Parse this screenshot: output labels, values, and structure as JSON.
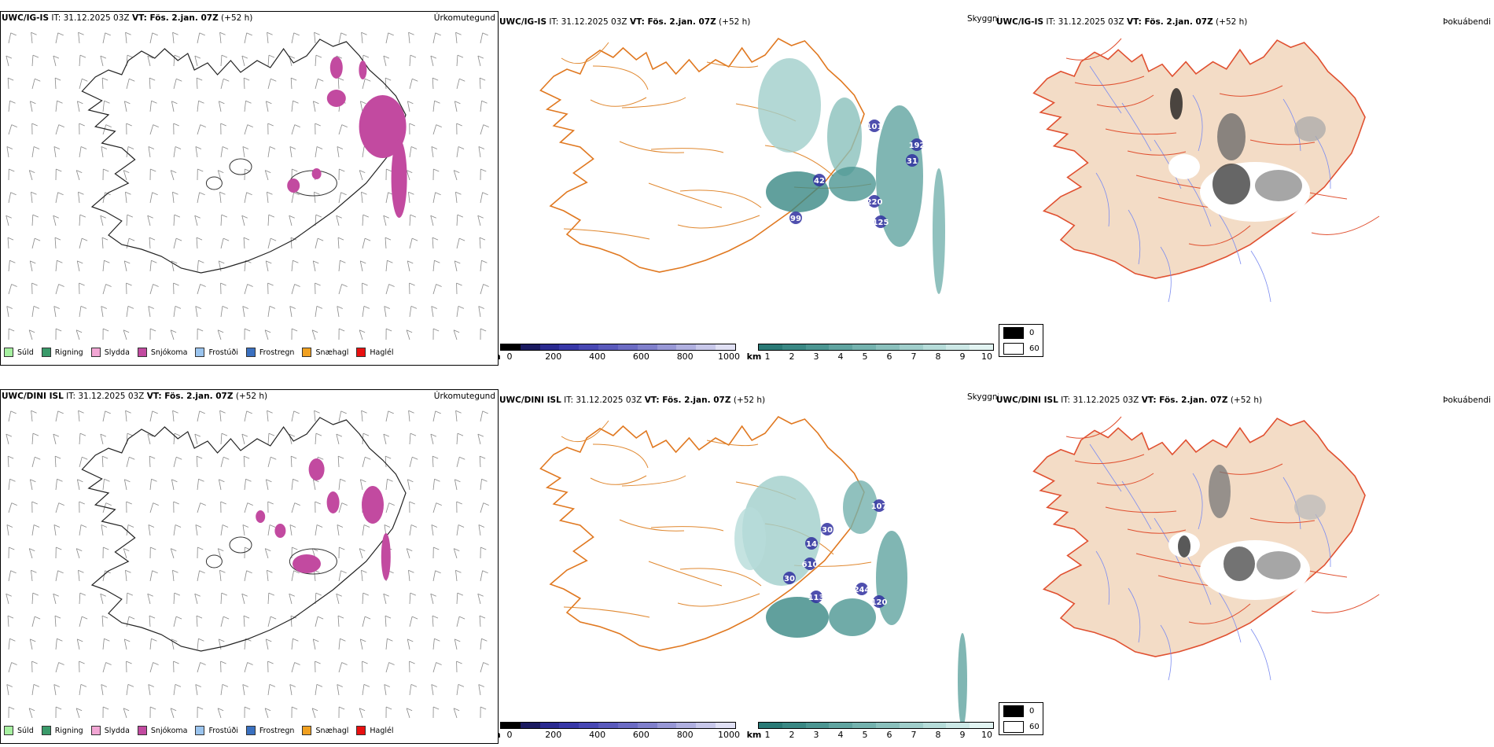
{
  "rows": [
    {
      "model": "UWC/IG-IS",
      "it_label": "IT: 31.12.2025 03Z",
      "vt_label": "VT: Fös. 2.jan. 07Z",
      "lead": "(+52 h)",
      "titles": {
        "precip": "Úrkomutegund",
        "visibility": "Skyggni",
        "fog": "Þokuábendi"
      },
      "ceiling_labels": [
        "101",
        "192",
        "31",
        "42",
        "220",
        "99",
        "125"
      ]
    },
    {
      "model": "UWC/DINI ISL",
      "it_label": "IT: 31.12.2025 03Z",
      "vt_label": "VT: Fös. 2.jan. 07Z",
      "lead": "(+52 h)",
      "titles": {
        "precip": "Úrkomutegund",
        "visibility": "Skyggni",
        "fog": "Þokuábendi"
      },
      "ceiling_labels": [
        "107",
        "30",
        "14",
        "610",
        "30",
        "113",
        "244",
        "120"
      ]
    }
  ],
  "precip_legend": [
    {
      "label": "Súld",
      "color": "#a6f0a0"
    },
    {
      "label": "Rigning",
      "color": "#3a9a6a"
    },
    {
      "label": "Slydda",
      "color": "#f2a6d4"
    },
    {
      "label": "Snjókoma",
      "color": "#c24aa0"
    },
    {
      "label": "Frostúði",
      "color": "#9ac4ee"
    },
    {
      "label": "Frostregn",
      "color": "#3a70c0"
    },
    {
      "label": "Snæhagl",
      "color": "#f0a020"
    },
    {
      "label": "Haglél",
      "color": "#e81010"
    }
  ],
  "ceiling_scale": {
    "unit": "m",
    "ticks": [
      "0",
      "200",
      "400",
      "600",
      "800",
      "1000"
    ],
    "colors": [
      "#000000",
      "#1a1a60",
      "#2a2a90",
      "#3838a8",
      "#4848b4",
      "#5a5abc",
      "#6c6cc4",
      "#8080cc",
      "#9898d6",
      "#b0b0e0",
      "#c8c8ea",
      "#e0e0f4"
    ]
  },
  "visibility_scale": {
    "unit": "km",
    "ticks": [
      "1",
      "2",
      "3",
      "4",
      "5",
      "6",
      "7",
      "8",
      "9",
      "10"
    ],
    "colors": [
      "#2a7a76",
      "#3a8884",
      "#4c9692",
      "#60a4a0",
      "#74b2ae",
      "#8ac0bc",
      "#a0cecb",
      "#b6dcd9",
      "#cce8e6",
      "#e2f4f2"
    ]
  },
  "fog_scale": {
    "items": [
      {
        "label": "0",
        "color": "#000000"
      },
      {
        "label": "60",
        "color": "#ffffff"
      }
    ]
  }
}
